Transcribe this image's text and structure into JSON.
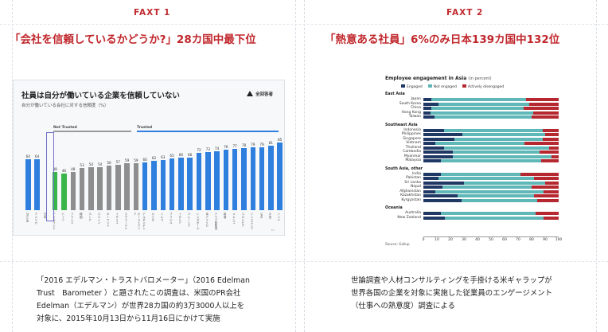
{
  "left": {
    "fact_label": "FAXT 1",
    "headline": "「会社を信頼しているかどうか?」28カ国中最下位",
    "caption_lines": [
      "「2016 エデルマン・トラストバロメーター」（2016 Edelman",
      "Trust　Barometer ）と題されたこの調査は、米国のPR会社",
      "Edelman（エデルマン）が世界28カ国の約3万3000人以上を",
      "対象に、2015年10月13日から11月16日にかけて実施"
    ],
    "slide": {
      "title": "社員は自分が働いている企業を信頼していない",
      "subtitle": "自分が働いている会社に対する信頼度（%）",
      "logo": "全回答者",
      "group_not_trusted": "Not Trusted",
      "group_trusted": "Trusted",
      "footnote": "",
      "page": "41"
    }
  },
  "right": {
    "fact_label": "FAXT 2",
    "headline": "「熱意ある社員」6%のみ日本139カ国中132位",
    "caption_lines": [
      "世論調査や人材コンサルティングを手掛ける米ギャラップが",
      "世界各国の企業を対象に実施した従業員のエンゲージメント",
      "（仕事への熱意度）調査による"
    ],
    "chart_title": "Employee engagement in Asia",
    "chart_title_unit": "(in percent)",
    "source": "Source: Gallup"
  },
  "colors": {
    "accent_red": "#c0282d",
    "bar_blue": "#2f7fde",
    "bar_green": "#39b54a",
    "bar_gray": "#8e8e8e",
    "engaged": "#1f3864",
    "not_engaged": "#5fb7b7",
    "disengaged": "#b5282f"
  },
  "chart_data": [
    {
      "type": "bar",
      "title": "社員は自分が働いている企業を信頼していない",
      "subtitle": "自分が働いている会社に対する信頼度（%）",
      "ylim": [
        0,
        100
      ],
      "groups": [
        {
          "name": "Not Trusted",
          "range": [
            2,
            12
          ]
        },
        {
          "name": "Trusted",
          "range": [
            13,
            29
          ]
        }
      ],
      "categories": [
        "28カ国",
        "アメリカ",
        "日本",
        "アイルランド",
        "ドイツ",
        "フランス",
        "韓国",
        "ロシア",
        "スペイン",
        "ポーランド",
        "イギリス",
        "スウェーデン",
        "オーストラリア",
        "アルゼンチン",
        "カナダ",
        "トルコ",
        "ブラジル",
        "イタリア",
        "マレーシア",
        "シンガポール",
        "南アフリカ",
        "アラブ首長国",
        "香港",
        "メキシコ",
        "コロンビア",
        "インドネシア",
        "UAE",
        "中国",
        "インド"
      ],
      "values": [
        64,
        64,
        null,
        48,
        46,
        48,
        53,
        54,
        54,
        56,
        57,
        59,
        59,
        60,
        62,
        63,
        65,
        66,
        66,
        72,
        73,
        74,
        76,
        77,
        78,
        79,
        79,
        81,
        85
      ],
      "colors": [
        "blue",
        "blue",
        "green",
        "green",
        "green",
        "gray",
        "gray",
        "gray",
        "gray",
        "gray",
        "gray",
        "gray",
        "gray",
        "blue",
        "blue",
        "blue",
        "blue",
        "blue",
        "blue",
        "blue",
        "blue",
        "blue",
        "blue",
        "blue",
        "blue",
        "blue",
        "blue",
        "blue",
        "blue"
      ]
    },
    {
      "type": "bar",
      "orientation": "horizontal-stacked",
      "title": "Employee engagement in Asia",
      "xlim": [
        0,
        100
      ],
      "x_ticks": [
        0,
        10,
        20,
        30,
        40,
        50,
        60,
        70,
        80,
        90,
        100
      ],
      "legend": [
        "Engaged",
        "Not engaged",
        "Actively disengaged"
      ],
      "legend_position": "top",
      "regions": [
        {
          "name": "East Asia",
          "countries": [
            {
              "name": "Japan",
              "values": [
                6,
                70,
                24
              ]
            },
            {
              "name": "South Korea",
              "values": [
                11,
                67,
                22
              ]
            },
            {
              "name": "China",
              "values": [
                6,
                68,
                26
              ]
            },
            {
              "name": "Hong Kong",
              "values": [
                5,
                76,
                19
              ]
            },
            {
              "name": "Taiwan",
              "values": [
                8,
                72,
                20
              ]
            }
          ]
        },
        {
          "name": "Southeast Asia",
          "countries": [
            {
              "name": "Indonesia",
              "values": [
                15,
                73,
                12
              ]
            },
            {
              "name": "Philippines",
              "values": [
                29,
                61,
                10
              ]
            },
            {
              "name": "Singapore",
              "values": [
                23,
                65,
                12
              ]
            },
            {
              "name": "Vietnam",
              "values": [
                9,
                66,
                25
              ]
            },
            {
              "name": "Thailand",
              "values": [
                15,
                78,
                7
              ]
            },
            {
              "name": "Cambodia",
              "values": [
                22,
                64,
                14
              ]
            },
            {
              "name": "Myanmar",
              "values": [
                22,
                73,
                5
              ]
            },
            {
              "name": "Malaysia",
              "values": [
                13,
                74,
                13
              ]
            }
          ]
        },
        {
          "name": "South Asia, other",
          "countries": [
            {
              "name": "India",
              "values": [
                13,
                59,
                28
              ]
            },
            {
              "name": "Pakistan",
              "values": [
                11,
                71,
                18
              ]
            },
            {
              "name": "Sri Lanka",
              "values": [
                30,
                60,
                10
              ]
            },
            {
              "name": "Nepal",
              "values": [
                14,
                66,
                20
              ]
            },
            {
              "name": "Afghanistan",
              "values": [
                9,
                80,
                11
              ]
            },
            {
              "name": "Kazakhstan",
              "values": [
                25,
                57,
                18
              ]
            },
            {
              "name": "Kyrgyzstan",
              "values": [
                28,
                56,
                16
              ]
            }
          ]
        },
        {
          "name": "Oceania",
          "countries": [
            {
              "name": "Australia",
              "values": [
                13,
                70,
                17
              ]
            },
            {
              "name": "New Zealand",
              "values": [
                16,
                73,
                11
              ]
            }
          ]
        }
      ]
    }
  ]
}
